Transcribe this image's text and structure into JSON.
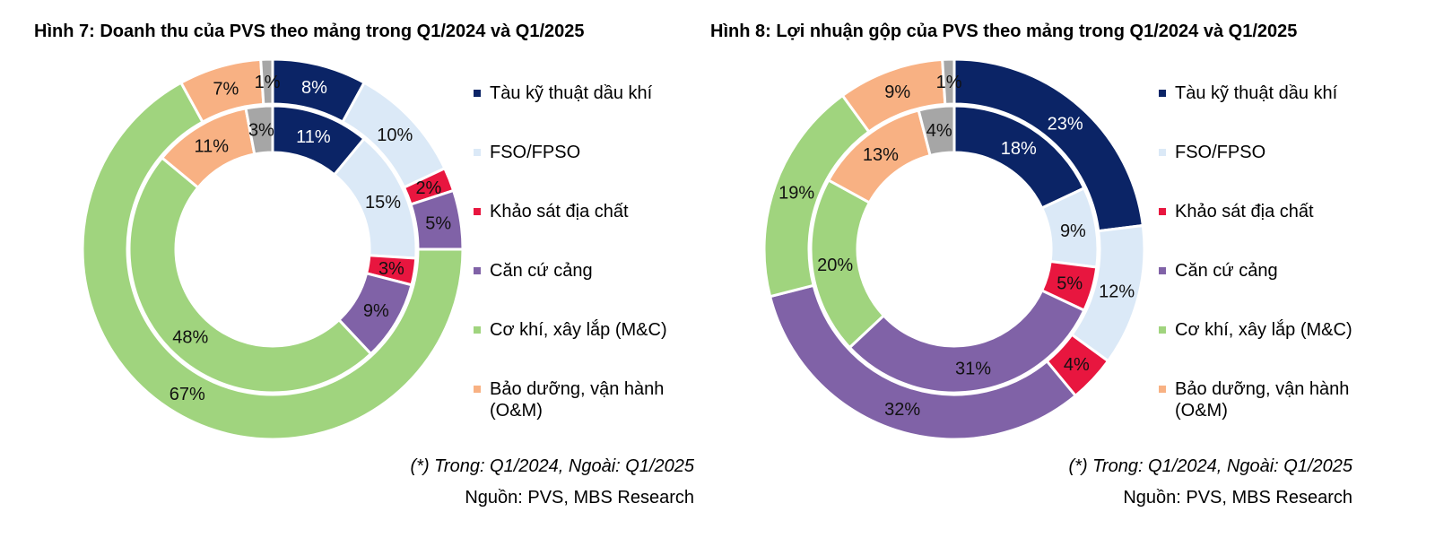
{
  "colors": {
    "tau": "#0b2466",
    "fso": "#dbe9f7",
    "khao_sat": "#e8163f",
    "can_cu": "#8062a7",
    "co_khi": "#a0d47e",
    "bao_duong": "#f8b183",
    "khac": "#a6a6a6"
  },
  "chart_data": [
    {
      "type": "pie",
      "title": "Hình 7: Doanh thu của PVS theo mảng trong Q1/2024 và Q1/2025",
      "categories": [
        "Tàu kỹ thuật dầu khí",
        "FSO/FPSO",
        "Khảo sát địa chất",
        "Căn cứ cảng",
        "Cơ khí, xây lắp (M&C)",
        "Bảo dưỡng, vận hành (O&M)",
        ""
      ],
      "series": [
        {
          "name": "Q1/2024",
          "values": [
            11,
            15,
            3,
            9,
            48,
            11,
            3
          ],
          "labels": [
            "11%",
            "15%",
            "3%",
            "9%",
            "48%",
            "11%",
            "3%"
          ]
        },
        {
          "name": "Q1/2025",
          "values": [
            8,
            10,
            2,
            5,
            67,
            7,
            1
          ],
          "labels": [
            "8%",
            "10%",
            "2%",
            "5%",
            "67%",
            "7%",
            "1%"
          ]
        }
      ],
      "legend": [
        "Tàu kỹ thuật dầu khí",
        "FSO/FPSO",
        "Khảo sát địa chất",
        "Căn cứ cảng",
        "Cơ khí, xây lắp (M&C)",
        "Bảo dưỡng, vận hành (O&M)"
      ],
      "legend_position": "right",
      "note": "(*) Trong: Q1/2024, Ngoài: Q1/2025",
      "source": "Nguồn: PVS, MBS Research"
    },
    {
      "type": "pie",
      "title": "Hình 8: Lợi nhuận gộp của PVS theo mảng trong Q1/2024 và Q1/2025",
      "categories": [
        "Tàu kỹ thuật dầu khí",
        "FSO/FPSO",
        "Khảo sát địa chất",
        "Căn cứ cảng",
        "Cơ khí, xây lắp (M&C)",
        "Bảo dưỡng, vận hành (O&M)",
        ""
      ],
      "series": [
        {
          "name": "Q1/2024",
          "values": [
            18,
            9,
            5,
            31,
            20,
            13,
            4
          ],
          "labels": [
            "18%",
            "9%",
            "5%",
            "31%",
            "20%",
            "13%",
            "4%"
          ]
        },
        {
          "name": "Q1/2025",
          "values": [
            23,
            12,
            4,
            32,
            19,
            9,
            1
          ],
          "labels": [
            "23%",
            "12%",
            "4%",
            "32%",
            "19%",
            "9%",
            "1%"
          ]
        }
      ],
      "legend": [
        "Tàu kỹ thuật dầu khí",
        "FSO/FPSO",
        "Khảo sát địa chất",
        "Căn cứ cảng",
        "Cơ khí, xây lắp (M&C)",
        "Bảo dưỡng, vận hành (O&M)"
      ],
      "legend_position": "right",
      "note": "(*) Trong: Q1/2024, Ngoài: Q1/2025",
      "source": "Nguồn: PVS, MBS Research"
    }
  ]
}
